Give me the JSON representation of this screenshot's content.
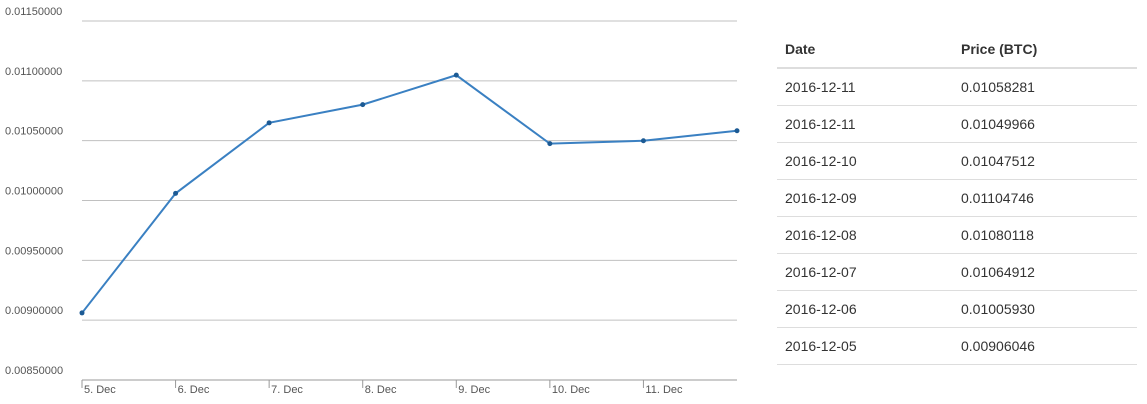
{
  "chart_data": {
    "type": "line",
    "categories": [
      "5. Dec",
      "6. Dec",
      "7. Dec",
      "8. Dec",
      "9. Dec",
      "10. Dec",
      "11. Dec",
      null
    ],
    "values": [
      0.00906046,
      0.0100593,
      0.01064912,
      0.01080118,
      0.01104746,
      0.01047512,
      0.01049966,
      0.01058281
    ],
    "color": "#3a80c2",
    "ylim": [
      0.0085,
      0.0115
    ],
    "yticks": [
      {
        "value": 0.0085,
        "label": "0.00850000"
      },
      {
        "value": 0.009,
        "label": "0.00900000"
      },
      {
        "value": 0.0095,
        "label": "0.00950000"
      },
      {
        "value": 0.01,
        "label": "0.01000000"
      },
      {
        "value": 0.0105,
        "label": "0.01050000"
      },
      {
        "value": 0.011,
        "label": "0.01100000"
      },
      {
        "value": 0.0115,
        "label": "0.01150000"
      }
    ],
    "grid": true
  },
  "table": {
    "headers": [
      "Date",
      "Price (BTC)"
    ],
    "rows": [
      [
        "2016-12-11",
        "0.01058281"
      ],
      [
        "2016-12-11",
        "0.01049966"
      ],
      [
        "2016-12-10",
        "0.01047512"
      ],
      [
        "2016-12-09",
        "0.01104746"
      ],
      [
        "2016-12-08",
        "0.01080118"
      ],
      [
        "2016-12-07",
        "0.01064912"
      ],
      [
        "2016-12-06",
        "0.01005930"
      ],
      [
        "2016-12-05",
        "0.00906046"
      ]
    ]
  }
}
